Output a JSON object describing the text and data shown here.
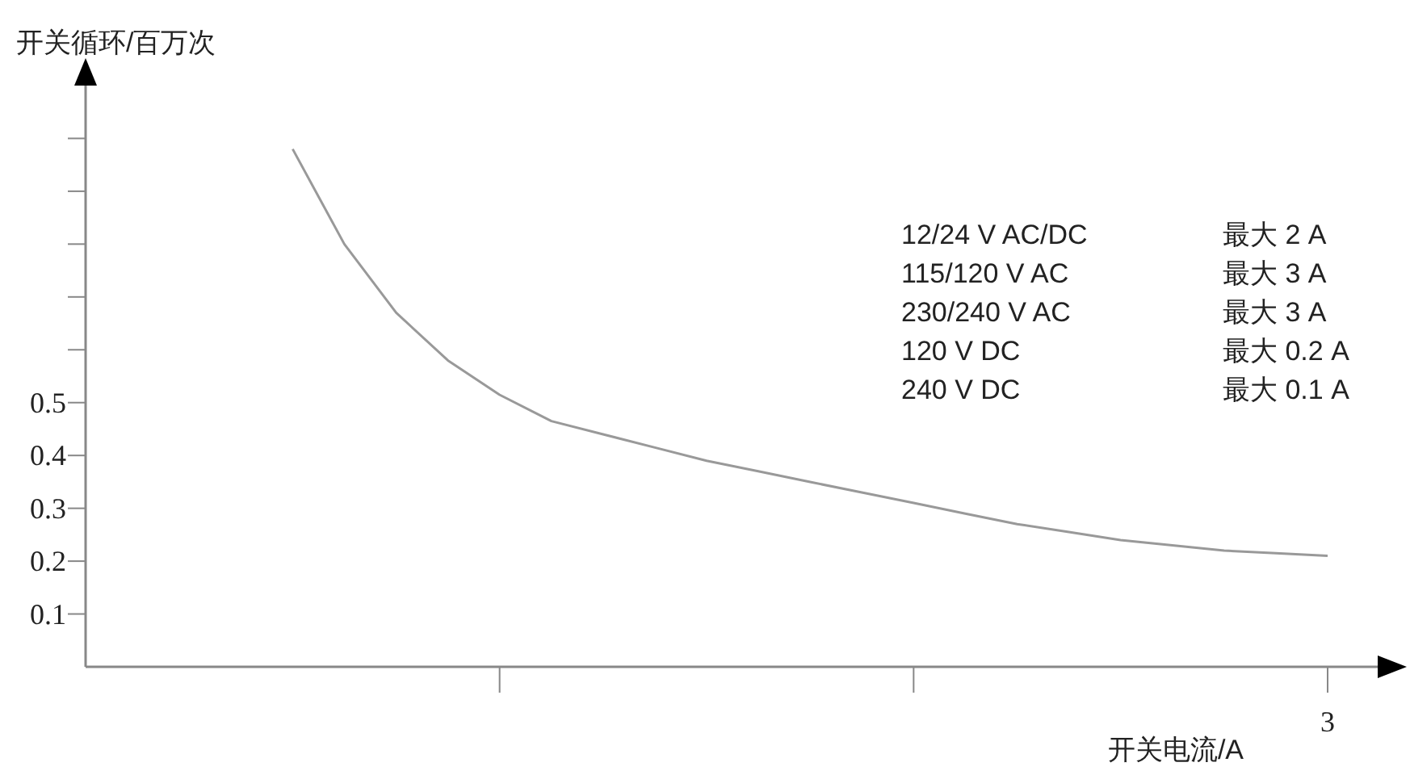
{
  "chart_data": {
    "type": "line",
    "xlabel": "开关电流/A",
    "ylabel": "开关循环/百万次",
    "categories": [
      null,
      null,
      null,
      null,
      null,
      null,
      null,
      null,
      null,
      null,
      null,
      null,
      null,
      null,
      null,
      null,
      null,
      null,
      null,
      null,
      null,
      null,
      null,
      null,
      null
    ],
    "series": [
      {
        "color": "#999999",
        "values": [
          null,
          null,
          null,
          null,
          0.98,
          0.8,
          0.67,
          0.58,
          0.515,
          0.465,
          0.44,
          0.415,
          0.39,
          0.37,
          0.35,
          0.33,
          0.31,
          0.29,
          0.27,
          0.255,
          0.24,
          0.23,
          0.22,
          0.215,
          0.21
        ]
      }
    ],
    "ylim": [
      0,
      1.1
    ],
    "yticks": [
      0.1,
      0.2,
      0.3,
      0.4,
      0.5,
      {
        "value": 0.6,
        "label": null
      },
      {
        "value": 0.7,
        "label": null
      },
      {
        "value": 0.8,
        "label": null
      },
      {
        "value": 0.9,
        "label": null
      },
      {
        "value": 1.0,
        "label": null
      }
    ],
    "annotations": [
      "12/24 V AC/DC",
      "最大 2 A",
      "115/120 V AC",
      "最大 3 A",
      "230/240 V AC",
      "最大 3 A",
      "120 V DC",
      "最大 0.2 A",
      "240 V DC",
      "最大 0.1 A",
      "3"
    ],
    "grid": false,
    "marker": "none",
    "line_style": "solid"
  }
}
